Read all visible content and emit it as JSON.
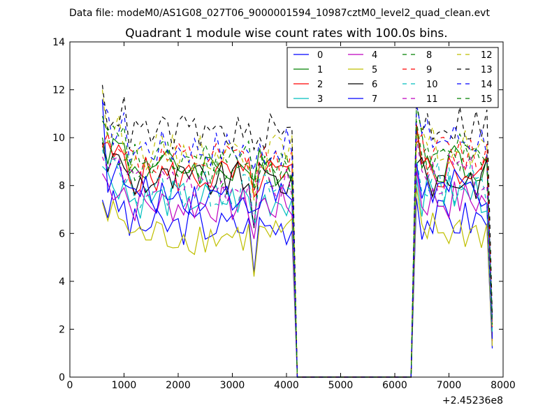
{
  "chart_data": {
    "type": "line",
    "suptitle": "Data file: modeM0/AS1G08_027T06_9000001594_10987cztM0_level2_quad_clean.evt",
    "title": "Quadrant 1 module wise count rates with 100.0s bins.",
    "xlabel": "",
    "ylabel": "",
    "x_offset_label": "+2.45236e8",
    "xlim": [
      0,
      8000
    ],
    "ylim": [
      0,
      14
    ],
    "x_ticks": [
      0,
      1000,
      2000,
      3000,
      4000,
      5000,
      6000,
      7000,
      8000
    ],
    "y_ticks": [
      0,
      2,
      4,
      6,
      8,
      10,
      12,
      14
    ],
    "legend_position": "top-right",
    "legend_columns": 4,
    "series": [
      {
        "name": "0",
        "color": "#0000ff",
        "dash": "solid"
      },
      {
        "name": "1",
        "color": "#008000",
        "dash": "solid"
      },
      {
        "name": "2",
        "color": "#ff0000",
        "dash": "solid"
      },
      {
        "name": "3",
        "color": "#00bfbf",
        "dash": "solid"
      },
      {
        "name": "4",
        "color": "#bf00bf",
        "dash": "solid"
      },
      {
        "name": "5",
        "color": "#bfbf00",
        "dash": "solid"
      },
      {
        "name": "6",
        "color": "#000000",
        "dash": "solid"
      },
      {
        "name": "7",
        "color": "#0000ff",
        "dash": "solid"
      },
      {
        "name": "8",
        "color": "#008000",
        "dash": "dashed"
      },
      {
        "name": "9",
        "color": "#ff0000",
        "dash": "dashed"
      },
      {
        "name": "10",
        "color": "#00bfbf",
        "dash": "dashed"
      },
      {
        "name": "11",
        "color": "#bf00bf",
        "dash": "dashed"
      },
      {
        "name": "12",
        "color": "#bfbf00",
        "dash": "dashed"
      },
      {
        "name": "13",
        "color": "#000000",
        "dash": "dashed"
      },
      {
        "name": "14",
        "color": "#0000ff",
        "dash": "dashed"
      },
      {
        "name": "15",
        "color": "#008000",
        "dash": "dashed"
      }
    ],
    "segment1": {
      "x_start": 600,
      "x_end": 4100,
      "step": 100
    },
    "segment2": {
      "x_start": 6400,
      "x_end": 7700,
      "step": 100
    },
    "gap_zero_x": [
      4200,
      6300
    ],
    "end_x": 7800,
    "end_values": [
      1.2,
      1.8,
      1.5,
      2.0,
      1.7,
      1.3,
      2.2,
      1.6,
      2.5,
      2.1,
      1.9,
      2.3,
      2.0,
      2.6,
      2.4,
      2.2
    ],
    "series_levels_segment1": [
      6.3,
      8.8,
      8.4,
      7.4,
      7.2,
      5.9,
      8.2,
      7.6,
      8.7,
      9.0,
      7.8,
      8.0,
      9.4,
      10.2,
      9.6,
      9.1
    ],
    "series_levels_segment2": [
      6.6,
      9.0,
      8.6,
      7.6,
      7.4,
      6.1,
      8.3,
      7.8,
      9.0,
      9.3,
      8.1,
      8.4,
      9.6,
      10.6,
      10.0,
      9.4
    ],
    "segment1_start_values": [
      7.4,
      10.0,
      9.7,
      8.8,
      8.5,
      7.3,
      9.8,
      11.6,
      10.9,
      9.6,
      9.5,
      9.2,
      12.0,
      12.2,
      11.5,
      10.7
    ]
  }
}
